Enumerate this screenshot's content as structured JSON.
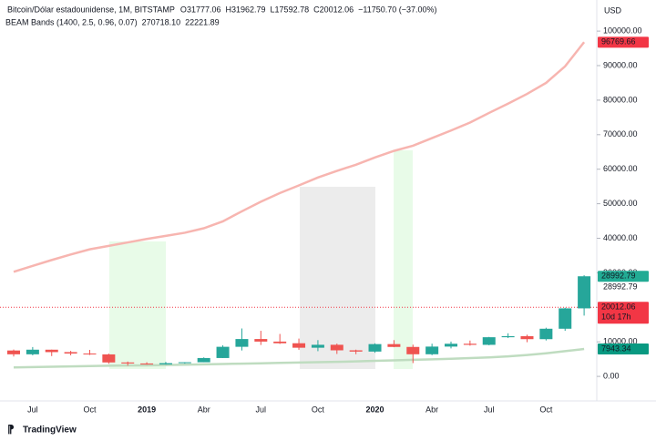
{
  "chart_data": {
    "type": "candlestick",
    "header": {
      "symbol": "Bitcoin/Dólar estadounidense, 1M, BITSTAMP",
      "ohlc": [
        {
          "key": "O",
          "value": "31777.06"
        },
        {
          "key": "H",
          "value": "31962.79"
        },
        {
          "key": "L",
          "value": "17592.78"
        },
        {
          "key": "C",
          "value": "20012.06"
        }
      ],
      "change": "−11750.70 (−37.00%)",
      "indicator": "BEAM Bands (1400, 2.5, 0.96, 0.07)",
      "indicator_upper": "270718.10",
      "indicator_lower": "22221.89"
    },
    "currency": "USD",
    "brand": "TradingView",
    "categories": [
      null,
      "Jul",
      null,
      null,
      "Oct",
      null,
      null,
      "2019",
      null,
      null,
      "Abr",
      null,
      null,
      "Jul",
      null,
      null,
      "Oct",
      null,
      null,
      "2020",
      null,
      null,
      "Abr",
      null,
      null,
      "Jul",
      null,
      null,
      "Oct",
      null,
      null
    ],
    "open": [
      7500,
      6400,
      7730,
      7030,
      6630,
      6370,
      4040,
      3740,
      3460,
      3830,
      4100,
      5320,
      8570,
      10820,
      10080,
      9600,
      8300,
      9150,
      7550,
      7190,
      9350,
      8530,
      6410,
      8630,
      9450,
      9140,
      11340,
      11650,
      10780,
      13800,
      19700
    ],
    "high": [
      7760,
      8500,
      7750,
      7400,
      7680,
      6600,
      4300,
      4100,
      4200,
      4100,
      5500,
      9000,
      13880,
      13200,
      12300,
      10950,
      10500,
      9500,
      7750,
      9580,
      10500,
      9190,
      9470,
      10080,
      10380,
      11440,
      12480,
      12070,
      14100,
      19900,
      29300
    ],
    "low": [
      5750,
      6100,
      5880,
      6100,
      6200,
      3650,
      3120,
      3390,
      3400,
      3700,
      4100,
      5300,
      7500,
      9100,
      9400,
      7700,
      7300,
      6500,
      6430,
      6850,
      8450,
      3850,
      6150,
      8100,
      8900,
      9000,
      11100,
      9900,
      10400,
      13200,
      17600
    ],
    "close": [
      6400,
      7730,
      7030,
      6630,
      6370,
      4040,
      3740,
      3460,
      3830,
      4100,
      5320,
      8570,
      10820,
      10080,
      9600,
      8300,
      9150,
      7550,
      7190,
      9350,
      8530,
      6410,
      8630,
      9450,
      9140,
      11340,
      11650,
      10780,
      13800,
      19700,
      28990
    ],
    "up_color": "#26a69a",
    "down_color": "#ef5350",
    "bands": [
      {
        "name": "upper",
        "color": "#f7b5b0",
        "values": [
          30300,
          32000,
          33700,
          35300,
          36800,
          37800,
          38800,
          39800,
          40700,
          41600,
          42900,
          44900,
          47800,
          50600,
          53100,
          55300,
          57600,
          59500,
          61300,
          63400,
          65300,
          66800,
          69000,
          71200,
          73500,
          76300,
          79000,
          81800,
          85000,
          89800,
          96800
        ]
      },
      {
        "name": "lower",
        "color": "#bfdcc0",
        "values": [
          2600,
          2700,
          2800,
          2900,
          3000,
          3100,
          3150,
          3200,
          3300,
          3400,
          3500,
          3600,
          3700,
          3800,
          3900,
          4000,
          4100,
          4200,
          4350,
          4500,
          4650,
          4800,
          4950,
          5100,
          5300,
          5500,
          5800,
          6200,
          6700,
          7300,
          7943
        ]
      }
    ],
    "ylim": [
      -7100,
      109000
    ],
    "yticks": [
      {
        "value": 0,
        "label": "0.00"
      },
      {
        "value": 10000,
        "label": "10000.00"
      },
      {
        "value": 20000,
        "label": "20000.00"
      },
      {
        "value": 30000,
        "label": "30000.00"
      },
      {
        "value": 40000,
        "label": "40000.00"
      },
      {
        "value": 50000,
        "label": "50000.00"
      },
      {
        "value": 60000,
        "label": "60000.00"
      },
      {
        "value": 70000,
        "label": "70000.00"
      },
      {
        "value": 80000,
        "label": "80000.00"
      },
      {
        "value": 90000,
        "label": "90000.00"
      },
      {
        "value": 100000,
        "label": "100000.00"
      }
    ],
    "price_markers": [
      {
        "value": 96769.66,
        "color": "#f23645"
      },
      {
        "value": 28992.79,
        "color": "#22ab94"
      },
      {
        "value": 7943.34,
        "color": "#089981"
      }
    ],
    "close_text": 28992.79,
    "last_price": {
      "value": 20012.06,
      "countdown": "10d 17h",
      "color": "#f23645"
    },
    "grid": false
  }
}
